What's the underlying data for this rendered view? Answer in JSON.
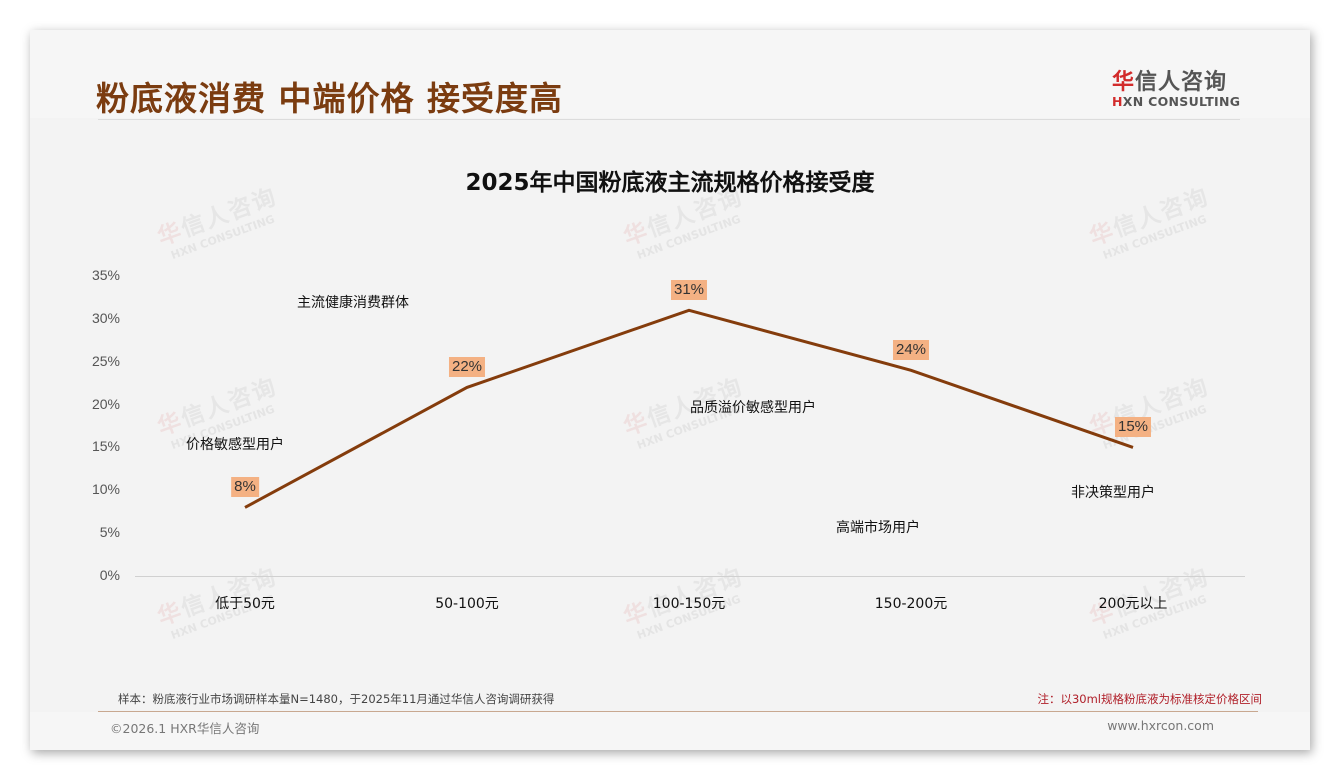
{
  "header": {
    "title": "粉底液消费 中端价格 接受度高",
    "logo": {
      "cn_first": "华",
      "cn_rest": "信人咨询",
      "en_first": "H",
      "en_rest": "XN CONSULTING"
    }
  },
  "watermark": {
    "cn_first": "华",
    "cn_rest": "信人咨询",
    "en": "HXN CONSULTING"
  },
  "chart_data": {
    "type": "line",
    "title": "2025年中国粉底液主流规格价格接受度",
    "xlabel": "",
    "ylabel": "",
    "categories": [
      "低于50元",
      "50-100元",
      "100-150元",
      "150-200元",
      "200元以上"
    ],
    "series": [
      {
        "name": "价格接受度",
        "values": [
          8,
          22,
          31,
          24,
          15
        ],
        "color": "#843c0c"
      }
    ],
    "data_labels": [
      "8%",
      "22%",
      "31%",
      "24%",
      "15%"
    ],
    "ylim": [
      0,
      35
    ],
    "yticks": [
      "0%",
      "5%",
      "10%",
      "15%",
      "20%",
      "25%",
      "30%",
      "35%"
    ],
    "grid": false,
    "legend": "none",
    "annotations": [
      {
        "text": "价格敏感型用户",
        "near": "低于50元"
      },
      {
        "text": "主流健康消费群体",
        "near": "50-100元"
      },
      {
        "text": "品质溢价敏感型用户",
        "near": "100-150元"
      },
      {
        "text": "高端市场用户",
        "near": "150-200元"
      },
      {
        "text": "非决策型用户",
        "near": "200元以上"
      }
    ],
    "label_bg_color": "#f4b183"
  },
  "notes": {
    "sample": "样本：粉底液行业市场调研样本量N=1480，于2025年11月通过华信人咨询调研获得",
    "spec": "注：以30ml规格粉底液为标准核定价格区间"
  },
  "footer": {
    "copyright": "©2026.1 HXR华信人咨询",
    "url": "www.hxrcon.com"
  }
}
